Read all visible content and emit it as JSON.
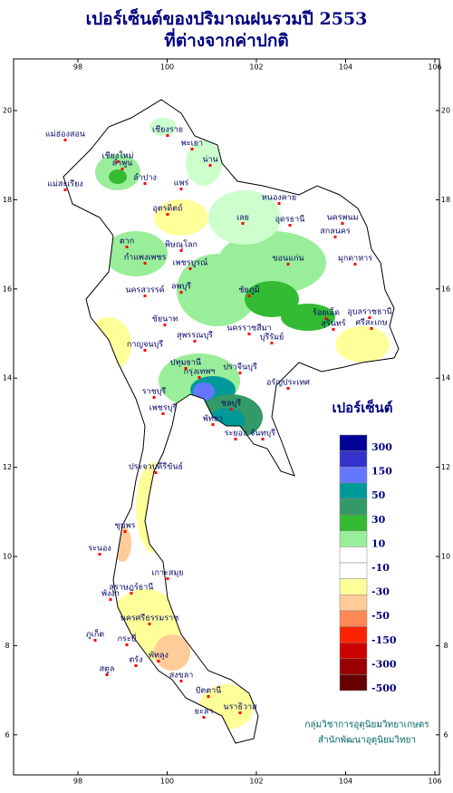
{
  "title": [
    "เปอร์เซ็นต์ของปริมาณฝนรวมปี 2553",
    "ที่ต่างจากค่าปกติ"
  ],
  "map": {
    "lon_ticks": [
      98,
      100,
      102,
      104,
      106
    ],
    "lat_ticks": [
      6,
      8,
      10,
      12,
      14,
      16,
      18,
      20
    ],
    "places": [
      "เชียงราย",
      "แม่ฮ่องสอน",
      "พะเยา",
      "เชียงใหม่",
      "ลำพูน",
      "น่าน",
      "ลำปาง",
      "แพร่",
      "แม่สะเรียง",
      "อุตรดิตถ์",
      "หนองคาย",
      "อุดรธานี",
      "นครพนม",
      "ตาก",
      "เลย",
      "สกลนคร",
      "พิษณุโลก",
      "มุกดาหาร",
      "กำแพงเพชร",
      "เพชรบูรณ์",
      "ขอนแก่น",
      "นครสวรรค์",
      "ชัยภูมิ",
      "อุบลราชธานี",
      "ลพบุรี",
      "ร้อยเอ็ด",
      "ชัยนาท",
      "สุรินทร์",
      "ศรีสะเกษ",
      "นครราชสีมา",
      "สุพรรณบุรี",
      "บุรีรัมย์",
      "กาญจนบุรี",
      "ปทุมธานี",
      "กรุงเทพฯ",
      "ปราจีนบุรี",
      "อรัญประเทศ",
      "ราชบุรี",
      "เพชรบุรี",
      "ชลบุรี",
      "พัทยา",
      "ระยอง",
      "จันทบุรี",
      "ประจวบคีรีขันธ์",
      "ชุมพร",
      "ระนอง",
      "เกาะสมุย",
      "สุราษฎร์ธานี",
      "พังงา",
      "นครศรีธรรมราช",
      "ภูเก็ต",
      "กระบี่",
      "ตรัง",
      "พัทลุง",
      "สงขลา",
      "สตูล",
      "ปัตตานี",
      "ยะลา",
      "นราธิวาส"
    ]
  },
  "legend": {
    "title": "เปอร์เซ็นต์",
    "labels": [
      300,
      150,
      50,
      30,
      10,
      -10,
      -30,
      -50,
      -150,
      -300,
      -500
    ],
    "colors": [
      "#000099",
      "#3333cc",
      "#6677ff",
      "#009999",
      "#339966",
      "#33bb33",
      "#99ee99",
      "#ffffff",
      "#ffffff",
      "#ffff99",
      "#ffcc99",
      "#ff8855",
      "#ff2200",
      "#cc0000",
      "#990000",
      "#660000"
    ]
  },
  "credit": [
    "กลุ่มวิชาการอุตุนิยมวิทยาเกษตร",
    "สำนักพัฒนาอุตุนิยมวิทยา"
  ]
}
